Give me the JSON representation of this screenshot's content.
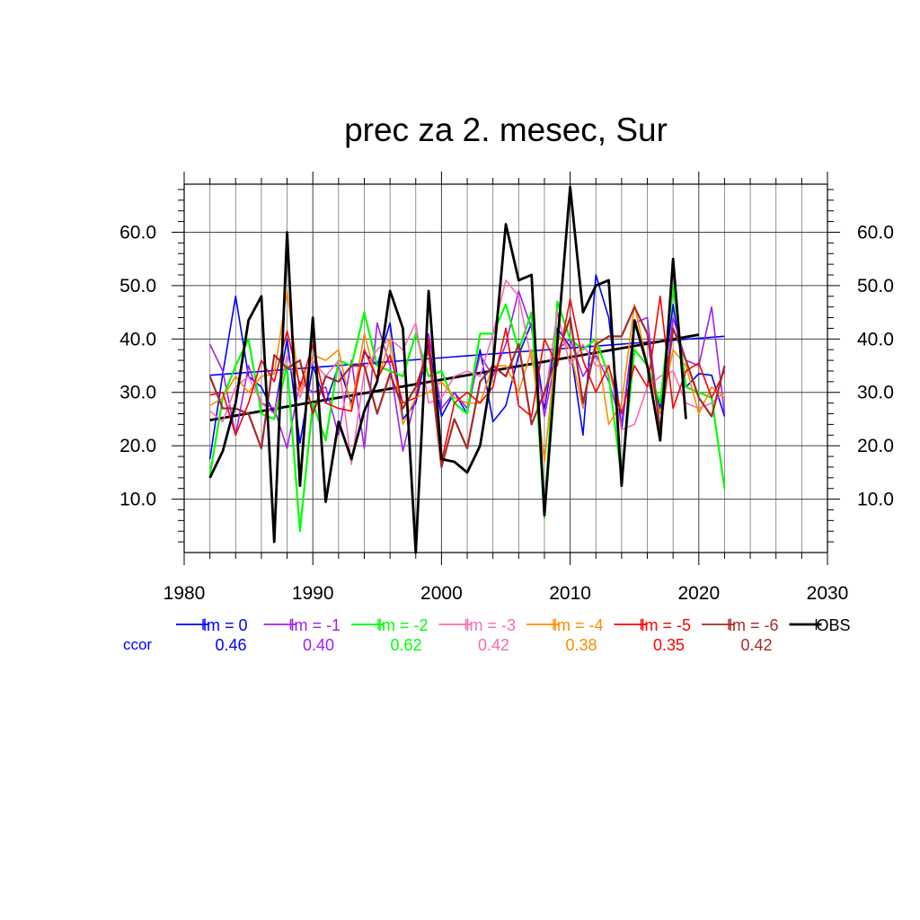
{
  "chart_data": {
    "type": "line",
    "title": "prec za 2. mesec, Sur",
    "xlabel": "",
    "ylabel": "",
    "xlim": [
      1980,
      2030
    ],
    "ylim": [
      0,
      69
    ],
    "x_ticks": [
      1980,
      1990,
      2000,
      2010,
      2020,
      2030
    ],
    "x_tick_labels": [
      "1980",
      "1990",
      "2000",
      "2010",
      "2020",
      "2030"
    ],
    "y_ticks": [
      10,
      20,
      30,
      40,
      50,
      60
    ],
    "y_tick_labels": [
      "10.0",
      "20.0",
      "30.0",
      "40.0",
      "50.0",
      "60.0"
    ],
    "grid": true,
    "legend_placement": "bottom",
    "ccor_label": "ccor",
    "x": [
      1982,
      1983,
      1984,
      1985,
      1986,
      1987,
      1988,
      1989,
      1990,
      1991,
      1992,
      1993,
      1994,
      1995,
      1996,
      1997,
      1998,
      1999,
      2000,
      2001,
      2002,
      2003,
      2004,
      2005,
      2006,
      2007,
      2008,
      2009,
      2010,
      2011,
      2012,
      2013,
      2014,
      2015,
      2016,
      2017,
      2018,
      2019,
      2020,
      2021,
      2022
    ],
    "series": [
      {
        "name": "lm = 0",
        "ccor": "0.46",
        "color": "#0000ff",
        "width": 1.6,
        "values": [
          17.5,
          33.5,
          48,
          33,
          31,
          26,
          40,
          20.5,
          35,
          28,
          35,
          28,
          37.5,
          35,
          43,
          25,
          28,
          39,
          25.5,
          30,
          26,
          38,
          24.5,
          27.5,
          37,
          43,
          27,
          42,
          38.5,
          22,
          52,
          44,
          23,
          43,
          35,
          27,
          46.5,
          31,
          33.5,
          33.2,
          25.5
        ],
        "trend": [
          [
            1982,
            33.2
          ],
          [
            2022,
            40.5
          ]
        ]
      },
      {
        "name": "lm = -1",
        "ccor": "0.40",
        "color": "#a020f0",
        "width": 1.6,
        "values": [
          39,
          34,
          22,
          35,
          28,
          27,
          19.5,
          32,
          30,
          31,
          22,
          36,
          19.5,
          43,
          35,
          19,
          29,
          41,
          27,
          30,
          27,
          37,
          33,
          39,
          49,
          42,
          25.5,
          38,
          40,
          33,
          37,
          32,
          24,
          43,
          44,
          23,
          44,
          36,
          35,
          46,
          26
        ]
      },
      {
        "name": "lm = -2",
        "ccor": "0.62",
        "color": "#00ff00",
        "width": 2.2,
        "values": [
          14.5,
          29,
          35,
          40,
          26,
          25,
          35,
          4,
          28,
          21,
          36,
          35,
          45,
          35,
          34,
          33,
          41,
          33,
          34,
          28,
          26,
          41,
          41,
          46.5,
          38,
          45,
          6.5,
          47,
          40,
          38,
          40,
          33,
          14,
          38,
          35,
          28,
          50,
          31,
          30,
          29,
          12
        ]
      },
      {
        "name": "lm = -3",
        "ccor": "0.42",
        "color": "#ff69b4",
        "width": 1.6,
        "values": [
          26.5,
          24.5,
          31,
          33,
          28,
          26,
          37,
          29,
          36,
          33,
          36,
          16.5,
          34,
          38,
          40,
          38,
          43,
          28,
          29,
          33,
          34,
          33,
          41,
          51,
          48,
          36,
          28,
          45,
          35,
          39,
          35,
          35,
          23,
          24,
          31,
          33,
          34,
          28,
          27,
          28,
          30
        ]
      },
      {
        "name": "lm = -4",
        "ccor": "0.38",
        "color": "#ff8c00",
        "width": 1.6,
        "values": [
          27.5,
          29,
          33,
          30,
          33,
          33.5,
          49,
          30,
          37,
          36,
          38,
          27,
          41,
          32,
          40,
          24,
          29,
          30,
          32,
          29,
          28,
          28,
          35,
          35,
          30,
          38,
          17,
          41,
          38,
          27,
          40,
          24,
          28,
          46.5,
          35,
          26,
          38,
          35,
          26,
          31,
          29
        ]
      },
      {
        "name": "lm = -5",
        "ccor": "0.35",
        "color": "#ff0000",
        "width": 1.6,
        "values": [
          29.5,
          30,
          22,
          28,
          36,
          32,
          41.5,
          31,
          39,
          28,
          27,
          26.5,
          38,
          32.5,
          37,
          28,
          29,
          40,
          17,
          28,
          30,
          28,
          31,
          42,
          27.5,
          25.5,
          40,
          35,
          47.5,
          36,
          30,
          35,
          26,
          35,
          31,
          48,
          27,
          34,
          35.5,
          29,
          34
        ]
      },
      {
        "name": "lm = -6",
        "ccor": "0.42",
        "color": "#a52a2a",
        "width": 2.2,
        "values": [
          33,
          27,
          27,
          26,
          19.5,
          37,
          34.5,
          36,
          26,
          33,
          32,
          35,
          35,
          26,
          33.5,
          27,
          31,
          38,
          16,
          25,
          19.5,
          32,
          35,
          33,
          39,
          24,
          30,
          37,
          44,
          28,
          39,
          40.5,
          40.5,
          46,
          41,
          23,
          42,
          36,
          29,
          25.5,
          35
        ]
      },
      {
        "name": "OBS",
        "ccor": "",
        "color": "#000000",
        "width": 2.8,
        "values": [
          14,
          19,
          28,
          43.5,
          48,
          2,
          60,
          12.5,
          44,
          9.5,
          24.5,
          17.5,
          26.5,
          32,
          49,
          42,
          0,
          49,
          17.5,
          17,
          15,
          20,
          35,
          61.5,
          51,
          52,
          7,
          39,
          68.5,
          45,
          50,
          51,
          12.5,
          43.5,
          35,
          21,
          55,
          25,
          null,
          null,
          null
        ],
        "trend": [
          [
            1982,
            24.8
          ],
          [
            2020,
            40.8
          ]
        ]
      }
    ]
  }
}
